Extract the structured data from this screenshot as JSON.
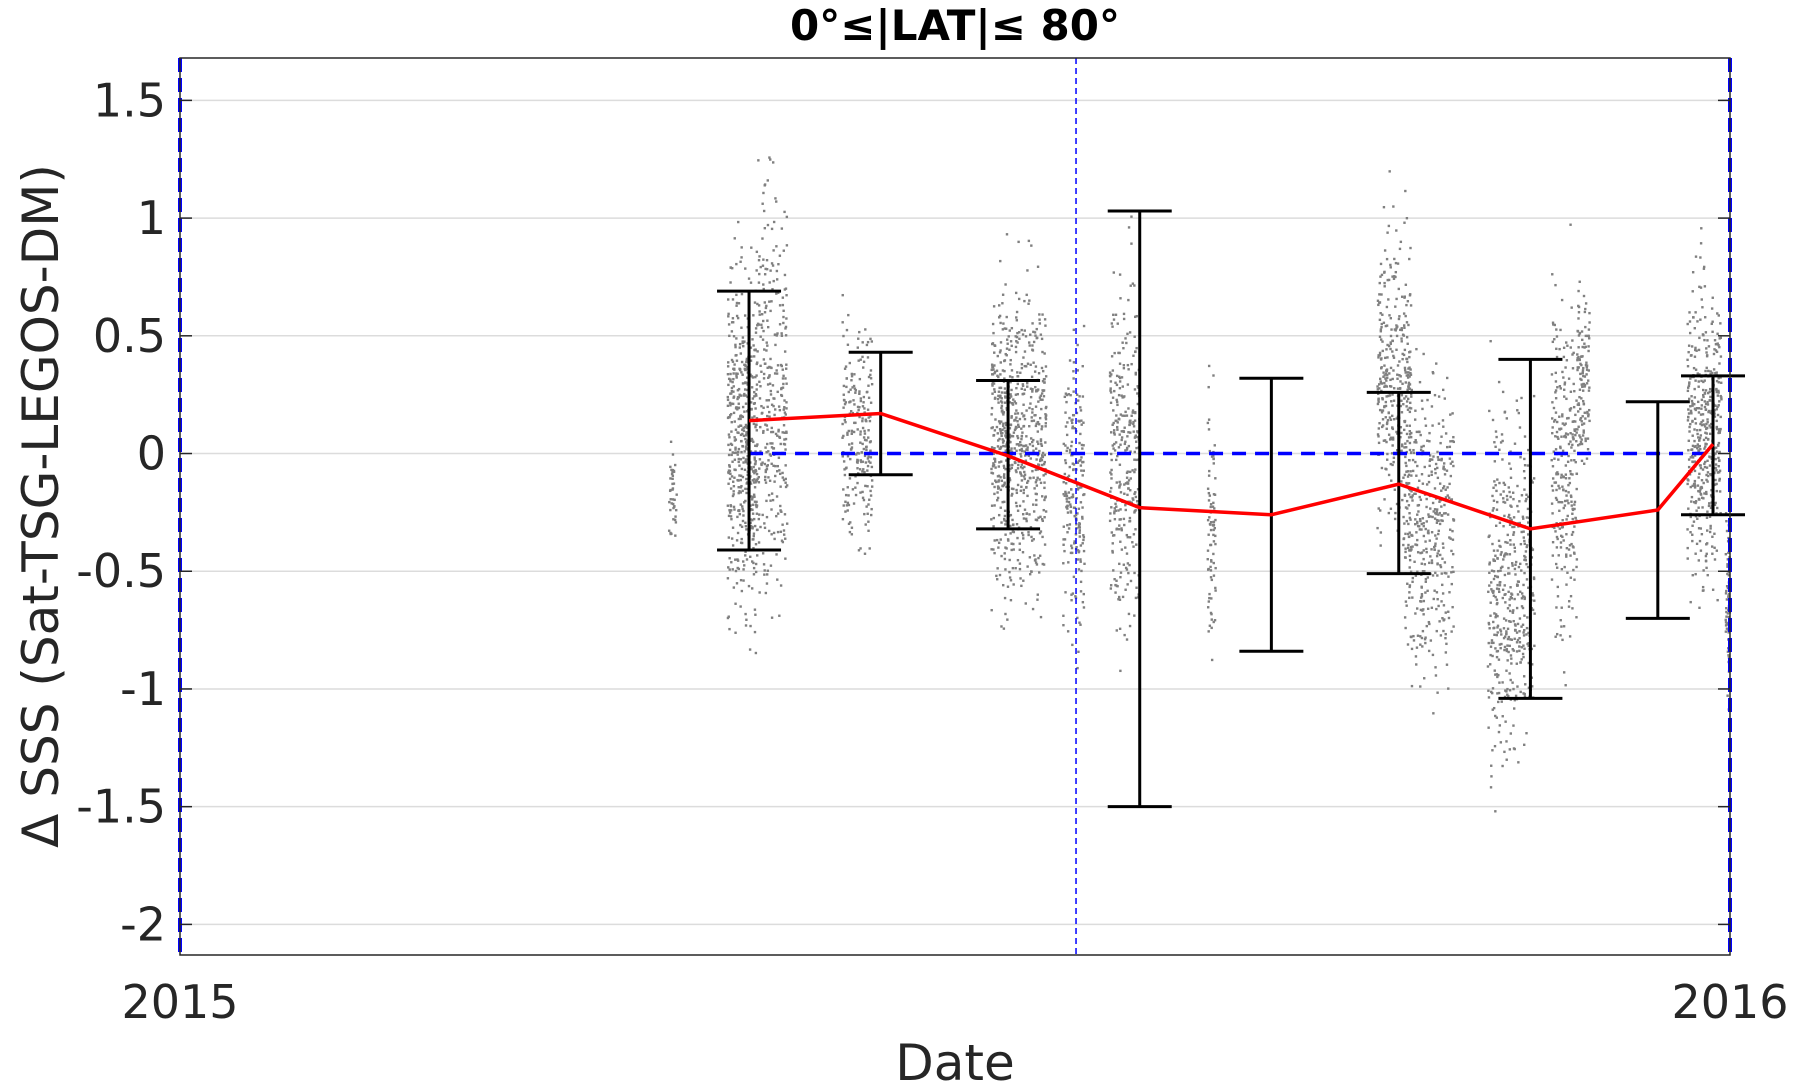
{
  "chart_data": {
    "type": "scatter",
    "title": "0°≤|LAT|≤ 80°",
    "xlabel": "Date",
    "ylabel": "Δ SSS (Sat-TSG-LEGOS-DM)",
    "xlim": [
      "2015-01-01",
      "2016-01-01"
    ],
    "ylim": [
      -2.13,
      1.68
    ],
    "grid": true,
    "x_ticks": [
      {
        "date": "2015-01-01",
        "label": "2015"
      },
      {
        "date": "2016-01-01",
        "label": "2016"
      }
    ],
    "y_ticks": [
      {
        "value": 1.5,
        "label": "1.5"
      },
      {
        "value": 1,
        "label": "1"
      },
      {
        "value": 0.5,
        "label": "0.5"
      },
      {
        "value": 0,
        "label": "0"
      },
      {
        "value": -0.5,
        "label": "-0.5"
      },
      {
        "value": -1,
        "label": "-1"
      },
      {
        "value": -1.5,
        "label": "-1.5"
      },
      {
        "value": -2,
        "label": "-2"
      }
    ],
    "monthly_mean": {
      "color": "#ff0000",
      "points": [
        {
          "date": "2015-05-15",
          "mean": 0.14,
          "lower": -0.41,
          "upper": 0.69
        },
        {
          "date": "2015-06-15",
          "mean": 0.17,
          "lower": -0.09,
          "upper": 0.43
        },
        {
          "date": "2015-07-15",
          "mean": -0.01,
          "lower": -0.32,
          "upper": 0.31
        },
        {
          "date": "2015-08-15",
          "mean": -0.23,
          "lower": -1.5,
          "upper": 1.03
        },
        {
          "date": "2015-09-15",
          "mean": -0.26,
          "lower": -0.84,
          "upper": 0.32
        },
        {
          "date": "2015-10-15",
          "mean": -0.13,
          "lower": -0.51,
          "upper": 0.26
        },
        {
          "date": "2015-11-15",
          "mean": -0.32,
          "lower": -1.04,
          "upper": 0.4
        },
        {
          "date": "2015-12-15",
          "mean": -0.24,
          "lower": -0.7,
          "upper": 0.22
        },
        {
          "date": "2015-12-28",
          "mean": 0.04,
          "lower": -0.26,
          "upper": 0.33
        }
      ]
    },
    "errorbar_color": "#000000",
    "scatter_color": "#808080",
    "scatter_clusters": [
      {
        "date_start": "2015-04-26",
        "date_end": "2015-04-28",
        "y_center": -0.18,
        "y_spread": 0.1,
        "count": 40
      },
      {
        "date_start": "2015-05-10",
        "date_end": "2015-05-17",
        "y_center": 0.05,
        "y_spread": 0.35,
        "count": 500
      },
      {
        "date_start": "2015-05-17",
        "date_end": "2015-05-24",
        "y_center": 0.25,
        "y_spread": 0.4,
        "count": 300
      },
      {
        "date_start": "2015-06-06",
        "date_end": "2015-06-13",
        "y_center": 0.1,
        "y_spread": 0.25,
        "count": 220
      },
      {
        "date_start": "2015-07-11",
        "date_end": "2015-07-24",
        "y_center": 0.05,
        "y_spread": 0.3,
        "count": 700
      },
      {
        "date_start": "2015-07-28",
        "date_end": "2015-08-02",
        "y_center": -0.15,
        "y_spread": 0.3,
        "count": 200
      },
      {
        "date_start": "2015-08-08",
        "date_end": "2015-08-15",
        "y_center": 0.0,
        "y_spread": 0.35,
        "count": 300
      },
      {
        "date_start": "2015-08-31",
        "date_end": "2015-09-02",
        "y_center": -0.3,
        "y_spread": 0.3,
        "count": 80
      },
      {
        "date_start": "2015-10-10",
        "date_end": "2015-10-18",
        "y_center": 0.3,
        "y_spread": 0.3,
        "count": 350
      },
      {
        "date_start": "2015-10-16",
        "date_end": "2015-10-28",
        "y_center": -0.3,
        "y_spread": 0.3,
        "count": 400
      },
      {
        "date_start": "2015-11-05",
        "date_end": "2015-11-16",
        "y_center": -0.55,
        "y_spread": 0.35,
        "count": 450
      },
      {
        "date_start": "2015-11-20",
        "date_end": "2015-11-26",
        "y_center": -0.1,
        "y_spread": 0.35,
        "count": 250
      },
      {
        "date_start": "2015-11-26",
        "date_end": "2015-11-29",
        "y_center": 0.3,
        "y_spread": 0.2,
        "count": 120
      },
      {
        "date_start": "2015-12-22",
        "date_end": "2015-12-30",
        "y_center": 0.1,
        "y_spread": 0.3,
        "count": 450
      },
      {
        "date_start": "2015-12-31",
        "date_end": "2016-01-01",
        "y_center": -0.6,
        "y_spread": 0.2,
        "count": 60
      }
    ],
    "reference_lines": {
      "zero_line": {
        "value": 0,
        "date_start": "2015-05-15",
        "date_end": "2015-12-28",
        "color": "#0000ff",
        "style": "dashed"
      },
      "vertical_lines": [
        {
          "date": "2015-01-01",
          "color": "#0000ff",
          "style": "dashed"
        },
        {
          "date": "2015-07-31",
          "color": "#0000ff",
          "style": "dashed"
        },
        {
          "date": "2016-01-01",
          "color": "#0000ff",
          "style": "dashed"
        }
      ]
    }
  }
}
